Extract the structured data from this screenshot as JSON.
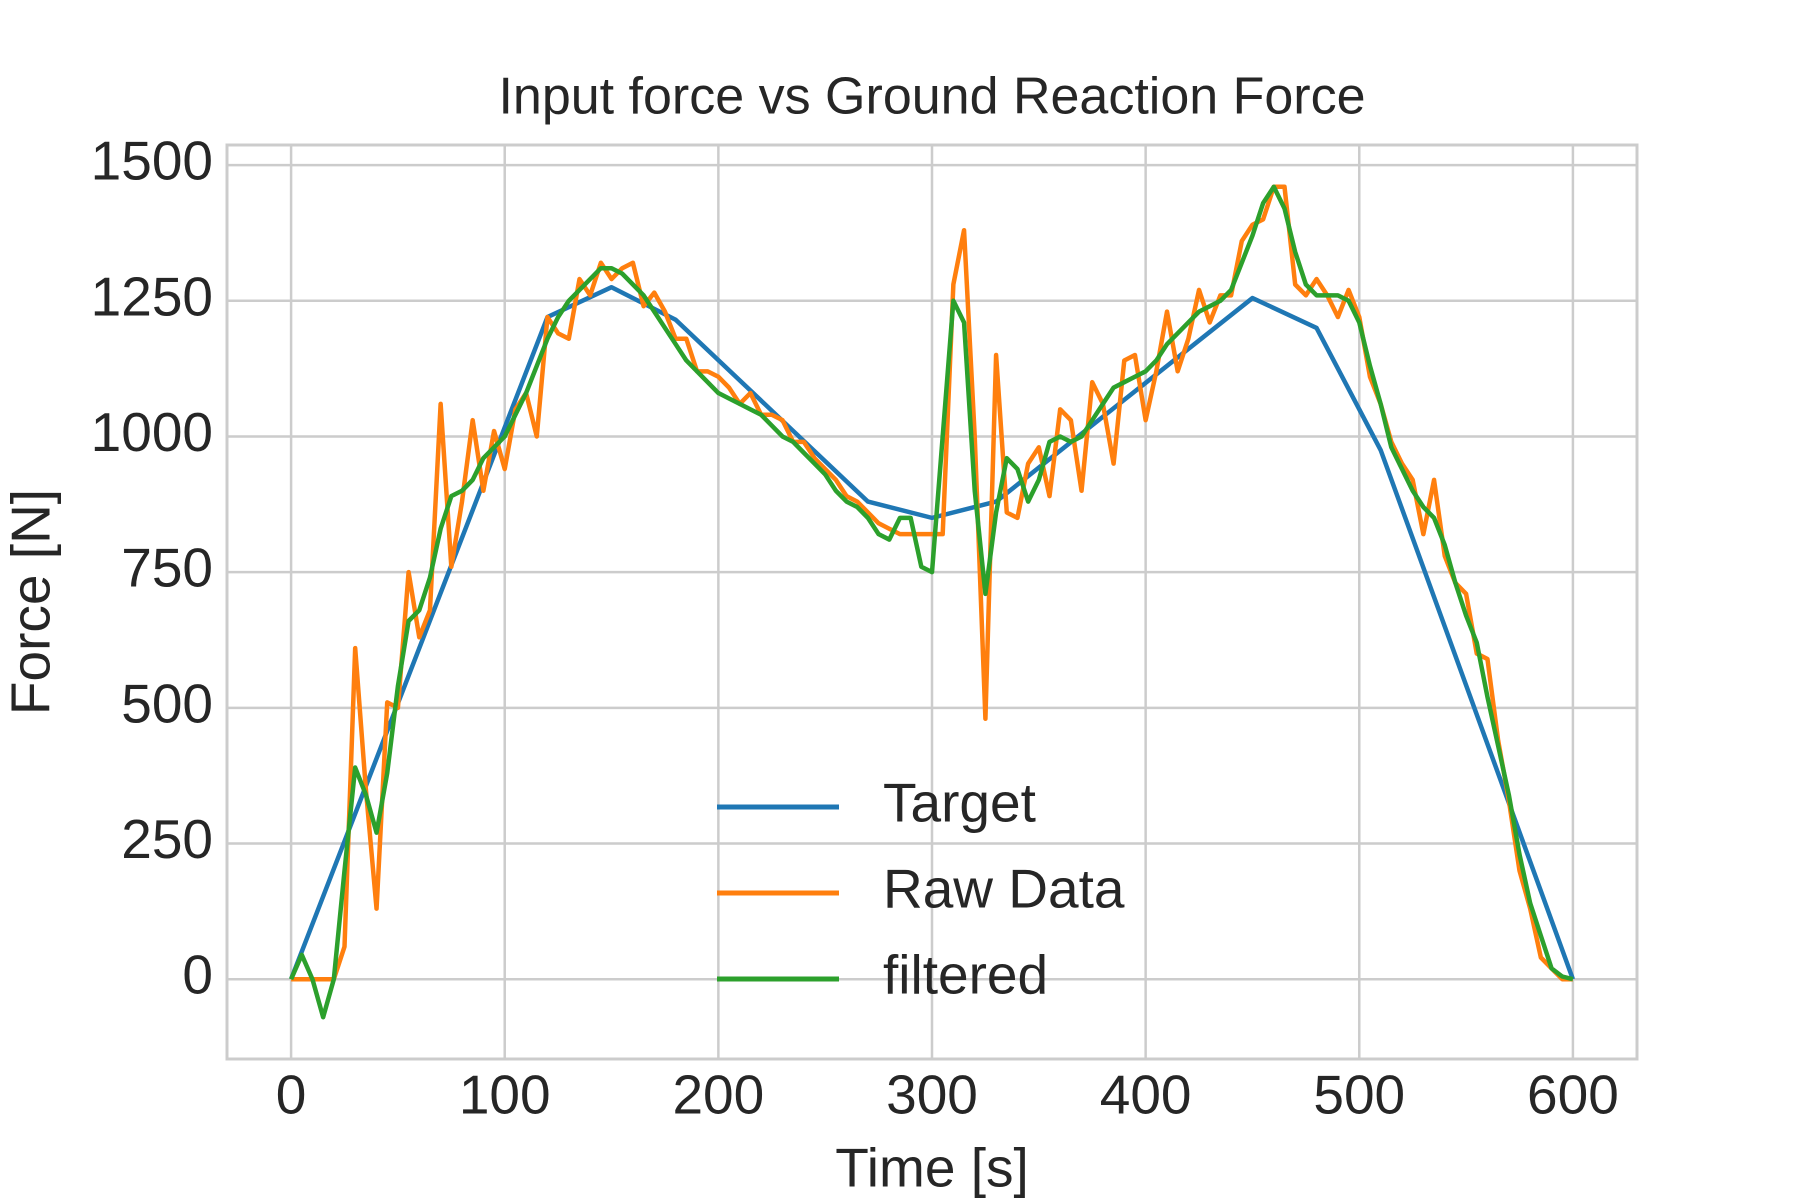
{
  "chart_data": {
    "type": "line",
    "title": "Input force vs Ground Reaction Force",
    "xlabel": "Time [s]",
    "ylabel": "Force [N]",
    "xlim": [
      -30,
      630
    ],
    "ylim": [
      -147,
      1537
    ],
    "xticks": [
      0,
      100,
      200,
      300,
      400,
      500,
      600
    ],
    "yticks": [
      0,
      250,
      500,
      750,
      1000,
      1250,
      1500
    ],
    "grid": true,
    "legend": "lower center",
    "series": [
      {
        "name": "Target",
        "color": "#1f77b4",
        "x": [
          0,
          120,
          150,
          180,
          270,
          300,
          330,
          450,
          480,
          510,
          600
        ],
        "values": [
          0,
          1220,
          1275,
          1215,
          880,
          850,
          880,
          1255,
          1200,
          975,
          0
        ]
      },
      {
        "name": "Raw Data",
        "color": "#ff7f0e",
        "x": [
          0,
          5,
          10,
          15,
          20,
          25,
          30,
          35,
          40,
          45,
          50,
          55,
          60,
          65,
          70,
          75,
          80,
          85,
          90,
          95,
          100,
          105,
          110,
          115,
          120,
          125,
          130,
          135,
          140,
          145,
          150,
          155,
          160,
          165,
          170,
          175,
          180,
          185,
          190,
          195,
          200,
          205,
          210,
          215,
          220,
          225,
          230,
          235,
          240,
          245,
          250,
          255,
          260,
          265,
          270,
          275,
          280,
          285,
          290,
          295,
          300,
          305,
          310,
          315,
          320,
          325,
          330,
          335,
          340,
          345,
          350,
          355,
          360,
          365,
          370,
          375,
          380,
          385,
          390,
          395,
          400,
          405,
          410,
          415,
          420,
          425,
          430,
          435,
          440,
          445,
          450,
          455,
          460,
          465,
          470,
          475,
          480,
          485,
          490,
          495,
          500,
          505,
          510,
          515,
          520,
          525,
          530,
          535,
          540,
          545,
          550,
          555,
          560,
          565,
          570,
          575,
          580,
          585,
          590,
          595,
          600
        ],
        "values": [
          0,
          0,
          0,
          0,
          0,
          60,
          610,
          350,
          130,
          510,
          500,
          750,
          630,
          680,
          1060,
          760,
          880,
          1030,
          900,
          1010,
          940,
          1050,
          1080,
          1000,
          1220,
          1190,
          1180,
          1290,
          1260,
          1320,
          1290,
          1310,
          1320,
          1240,
          1265,
          1230,
          1180,
          1180,
          1120,
          1120,
          1110,
          1090,
          1060,
          1080,
          1040,
          1040,
          1030,
          990,
          990,
          960,
          940,
          920,
          890,
          880,
          860,
          840,
          830,
          820,
          820,
          820,
          820,
          820,
          1280,
          1380,
          1000,
          480,
          1150,
          860,
          850,
          950,
          980,
          890,
          1050,
          1030,
          900,
          1100,
          1060,
          950,
          1140,
          1150,
          1030,
          1120,
          1230,
          1120,
          1180,
          1270,
          1210,
          1260,
          1260,
          1360,
          1390,
          1400,
          1460,
          1460,
          1280,
          1260,
          1290,
          1260,
          1220,
          1270,
          1220,
          1110,
          1060,
          990,
          950,
          920,
          820,
          920,
          780,
          730,
          710,
          600,
          590,
          440,
          330,
          200,
          130,
          40,
          20,
          0,
          0
        ]
      },
      {
        "name": "filtered",
        "color": "#2ca02c",
        "x": [
          0,
          5,
          10,
          15,
          20,
          25,
          30,
          35,
          40,
          45,
          50,
          55,
          60,
          65,
          70,
          75,
          80,
          85,
          90,
          95,
          100,
          105,
          110,
          115,
          120,
          125,
          130,
          135,
          140,
          145,
          150,
          155,
          160,
          165,
          170,
          175,
          180,
          185,
          190,
          195,
          200,
          205,
          210,
          215,
          220,
          225,
          230,
          235,
          240,
          245,
          250,
          255,
          260,
          265,
          270,
          275,
          280,
          285,
          290,
          295,
          300,
          305,
          310,
          315,
          320,
          325,
          330,
          335,
          340,
          345,
          350,
          355,
          360,
          365,
          370,
          375,
          380,
          385,
          390,
          395,
          400,
          405,
          410,
          415,
          420,
          425,
          430,
          435,
          440,
          445,
          450,
          455,
          460,
          465,
          470,
          475,
          480,
          485,
          490,
          495,
          500,
          505,
          510,
          515,
          520,
          525,
          530,
          535,
          540,
          545,
          550,
          555,
          560,
          565,
          570,
          575,
          580,
          585,
          590,
          595,
          600
        ],
        "values": [
          0,
          45,
          0,
          -70,
          0,
          200,
          390,
          340,
          270,
          380,
          540,
          660,
          680,
          740,
          830,
          890,
          900,
          920,
          960,
          980,
          1000,
          1040,
          1080,
          1130,
          1180,
          1220,
          1250,
          1270,
          1290,
          1310,
          1310,
          1300,
          1280,
          1260,
          1230,
          1200,
          1170,
          1140,
          1120,
          1100,
          1080,
          1070,
          1060,
          1050,
          1040,
          1020,
          1000,
          990,
          970,
          950,
          930,
          900,
          880,
          870,
          850,
          820,
          810,
          850,
          850,
          760,
          750,
          1000,
          1250,
          1210,
          900,
          710,
          860,
          960,
          940,
          880,
          920,
          990,
          1000,
          990,
          1000,
          1030,
          1060,
          1090,
          1100,
          1110,
          1120,
          1140,
          1170,
          1190,
          1210,
          1230,
          1240,
          1250,
          1270,
          1320,
          1370,
          1430,
          1460,
          1420,
          1340,
          1280,
          1260,
          1260,
          1260,
          1250,
          1210,
          1130,
          1060,
          980,
          940,
          900,
          870,
          850,
          800,
          730,
          670,
          620,
          520,
          430,
          340,
          230,
          140,
          80,
          20,
          5,
          0
        ]
      }
    ]
  }
}
